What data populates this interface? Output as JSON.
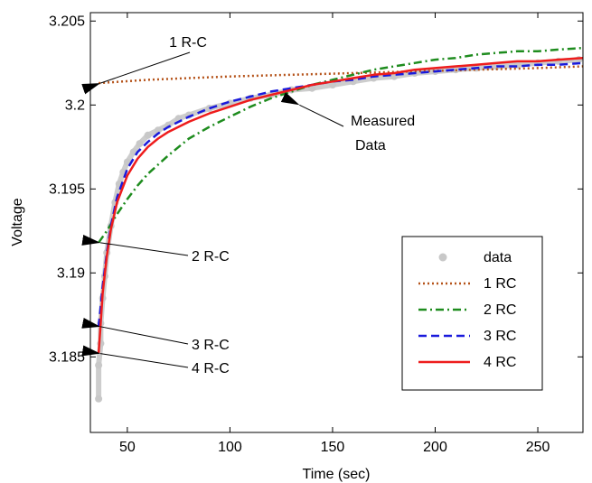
{
  "chart_data": {
    "type": "line",
    "title": "",
    "xlabel": "Time  (sec)",
    "ylabel": "Voltage",
    "xlim": [
      32,
      272
    ],
    "ylim": [
      3.1805,
      3.2055
    ],
    "xticks": [
      50,
      100,
      150,
      200,
      250
    ],
    "yticks": [
      3.185,
      3.19,
      3.195,
      3.2,
      3.205
    ],
    "ytick_labels": [
      "3.185",
      "3.19",
      "3.195",
      "3.2",
      "3.205"
    ],
    "grid": false,
    "legend_position": "lower-right",
    "series": [
      {
        "name": "data",
        "style": "markers",
        "color": "#c8c8c8",
        "x": [
          36,
          36,
          37,
          37,
          38,
          39,
          40,
          42,
          44,
          46,
          48,
          50,
          53,
          56,
          60,
          65,
          70,
          75,
          80,
          90,
          100,
          110,
          120,
          130,
          140,
          150,
          160,
          170,
          180,
          190,
          200,
          210,
          220,
          230,
          240,
          250,
          260,
          270
        ],
        "y": [
          3.1825,
          3.1845,
          3.1858,
          3.187,
          3.1885,
          3.1898,
          3.1912,
          3.1928,
          3.1942,
          3.1953,
          3.196,
          3.1966,
          3.1972,
          3.1977,
          3.1982,
          3.1985,
          3.1988,
          3.1992,
          3.1994,
          3.1998,
          3.2001,
          3.2004,
          3.2006,
          3.2009,
          3.201,
          3.2012,
          3.2014,
          3.2016,
          3.2017,
          3.2019,
          3.202,
          3.2021,
          3.2022,
          3.2023,
          3.2024,
          3.2025,
          3.2026,
          3.2027
        ]
      },
      {
        "name": "1 RC",
        "style": "dotted",
        "color": "#b5531a",
        "x": [
          36,
          60,
          80,
          100,
          130,
          160,
          190,
          220,
          250,
          272
        ],
        "y": [
          3.2013,
          3.2015,
          3.2016,
          3.2017,
          3.2018,
          3.2019,
          3.202,
          3.2021,
          3.2022,
          3.2023
        ]
      },
      {
        "name": "2 RC",
        "style": "dashdot",
        "color": "#1e8c1e",
        "x": [
          36,
          40,
          45,
          50,
          55,
          60,
          70,
          80,
          90,
          100,
          110,
          120,
          130,
          140,
          150,
          160,
          170,
          180,
          190,
          200,
          210,
          220,
          230,
          240,
          250,
          260,
          272
        ],
        "y": [
          3.1918,
          3.1925,
          3.1935,
          3.1944,
          3.1952,
          3.1959,
          3.197,
          3.198,
          3.1987,
          3.1993,
          3.1999,
          3.2004,
          3.2008,
          3.2012,
          3.2015,
          3.2018,
          3.2021,
          3.2023,
          3.2025,
          3.2027,
          3.2028,
          3.203,
          3.2031,
          3.2032,
          3.2032,
          3.2033,
          3.2034
        ]
      },
      {
        "name": "3 RC",
        "style": "dashed",
        "color": "#1a1adc",
        "x": [
          36,
          37,
          38,
          40,
          42,
          45,
          50,
          55,
          60,
          65,
          70,
          80,
          90,
          100,
          110,
          120,
          130,
          140,
          150,
          160,
          170,
          180,
          190,
          200,
          210,
          220,
          230,
          240,
          250,
          260,
          272
        ],
        "y": [
          3.1868,
          3.188,
          3.1892,
          3.1912,
          3.1928,
          3.1945,
          3.1962,
          3.1972,
          3.1978,
          3.1983,
          3.1987,
          3.1993,
          3.1998,
          3.2002,
          3.2005,
          3.2008,
          3.201,
          3.2012,
          3.2014,
          3.2015,
          3.2017,
          3.2018,
          3.2019,
          3.202,
          3.2021,
          3.2022,
          3.2023,
          3.2023,
          3.2024,
          3.2024,
          3.2025
        ]
      },
      {
        "name": "4 RC",
        "style": "solid",
        "color": "#ee1c1c",
        "x": [
          36,
          37,
          38,
          40,
          42,
          45,
          50,
          55,
          60,
          65,
          70,
          80,
          90,
          100,
          110,
          120,
          130,
          140,
          150,
          160,
          170,
          180,
          190,
          200,
          210,
          220,
          230,
          240,
          250,
          260,
          272
        ],
        "y": [
          3.1852,
          3.187,
          3.1888,
          3.191,
          3.1926,
          3.1942,
          3.1958,
          3.1968,
          3.1975,
          3.198,
          3.1984,
          3.199,
          3.1995,
          3.1999,
          3.2003,
          3.2006,
          3.2009,
          3.2012,
          3.2014,
          3.2016,
          3.2018,
          3.2019,
          3.2021,
          3.2022,
          3.2023,
          3.2024,
          3.2025,
          3.2026,
          3.2026,
          3.2027,
          3.2028
        ]
      }
    ],
    "annotations": [
      {
        "text": "1 R-C",
        "point_x": 36,
        "point_y": 3.2013
      },
      {
        "text": "Measured",
        "point_x": 133,
        "point_y": 3.2
      },
      {
        "text": "Data",
        "point_x": 133,
        "point_y": 3.2
      },
      {
        "text": "2 R-C",
        "point_x": 36,
        "point_y": 3.1918
      },
      {
        "text": "3 R-C",
        "point_x": 36,
        "point_y": 3.1868
      },
      {
        "text": "4 R-C",
        "point_x": 36,
        "point_y": 3.1852
      }
    ]
  }
}
